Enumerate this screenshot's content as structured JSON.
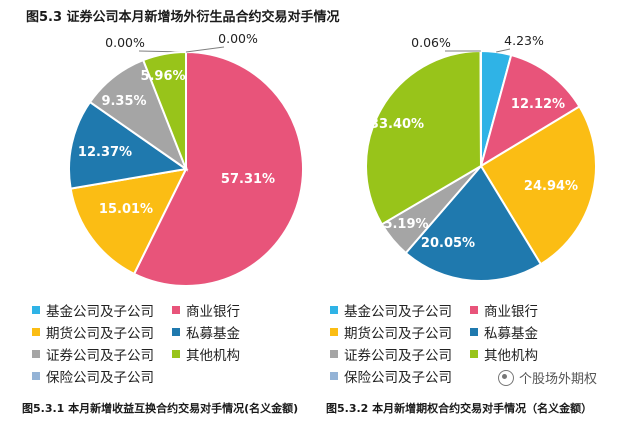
{
  "title": "图5.3 证券公司本月新增场外衍生品合约交易对手情况",
  "watermark": "个股场外期权",
  "colors": {
    "基金公司及子公司": "#2fb3e6",
    "商业银行": "#e8547a",
    "期货公司及子公司": "#fbbd14",
    "私募基金": "#1f79ae",
    "证券公司及子公司": "#a5a5a5",
    "其他机构": "#98c41a",
    "保险公司及子公司": "#94b3d6"
  },
  "chart_data": [
    {
      "type": "pie",
      "caption": "图5.3.1 本月新增收益互换合约交易对手情况(名义金额)",
      "slices": [
        {
          "name": "基金公司及子公司",
          "value": 0.0,
          "label": "0.00%"
        },
        {
          "name": "商业银行",
          "value": 57.31,
          "label": "57.31%"
        },
        {
          "name": "期货公司及子公司",
          "value": 15.01,
          "label": "15.01%"
        },
        {
          "name": "私募基金",
          "value": 12.37,
          "label": "12.37%"
        },
        {
          "name": "证券公司及子公司",
          "value": 9.35,
          "label": "9.35%"
        },
        {
          "name": "其他机构",
          "value": 5.96,
          "label": "5.96%"
        },
        {
          "name": "保险公司及子公司",
          "value": 0.0,
          "label": "0.00%"
        }
      ],
      "legend": [
        "基金公司及子公司",
        "商业银行",
        "期货公司及子公司",
        "私募基金",
        "证券公司及子公司",
        "其他机构",
        "保险公司及子公司"
      ]
    },
    {
      "type": "pie",
      "caption": "图5.3.2 本月新增期权合约交易对手情况（名义金额）",
      "slices": [
        {
          "name": "基金公司及子公司",
          "value": 4.23,
          "label": "4.23%"
        },
        {
          "name": "商业银行",
          "value": 12.12,
          "label": "12.12%"
        },
        {
          "name": "期货公司及子公司",
          "value": 24.94,
          "label": "24.94%"
        },
        {
          "name": "私募基金",
          "value": 20.05,
          "label": "20.05%"
        },
        {
          "name": "证券公司及子公司",
          "value": 5.19,
          "label": "5.19%"
        },
        {
          "name": "其他机构",
          "value": 33.4,
          "label": "33.40%"
        },
        {
          "name": "保险公司及子公司",
          "value": 0.06,
          "label": "0.06%"
        }
      ],
      "legend": [
        "基金公司及子公司",
        "商业银行",
        "期货公司及子公司",
        "私募基金",
        "证券公司及子公司",
        "其他机构",
        "保险公司及子公司"
      ]
    }
  ]
}
